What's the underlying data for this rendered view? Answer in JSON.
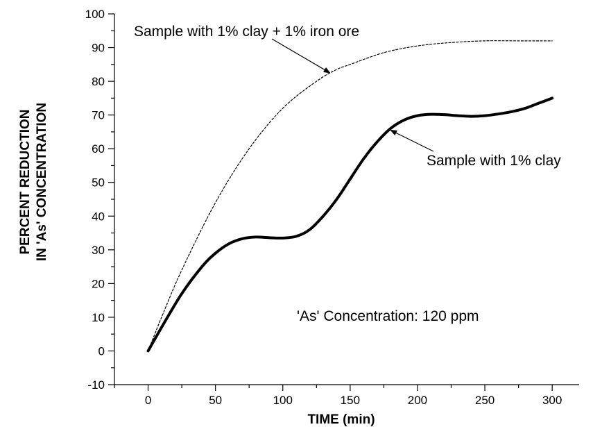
{
  "chart_data": {
    "type": "line",
    "xlabel": "TIME (min)",
    "ylabel_lines": [
      "PERCENT REDUCTION",
      "IN 'As' CONCENTRATION"
    ],
    "xlim": [
      -25,
      320
    ],
    "ylim": [
      -10,
      100
    ],
    "x_ticks": [
      0,
      50,
      100,
      150,
      200,
      250,
      300
    ],
    "y_ticks": [
      -10,
      0,
      10,
      20,
      30,
      40,
      50,
      60,
      70,
      80,
      90,
      100
    ],
    "grid": false,
    "series": [
      {
        "name": "Sample with 1% clay + 1% iron ore",
        "style": "dashed",
        "color": "#000000",
        "x": [
          0,
          10,
          25,
          50,
          75,
          100,
          125,
          140,
          150,
          175,
          200,
          225,
          250,
          275,
          300
        ],
        "y": [
          0,
          10,
          24,
          44,
          60,
          72,
          80,
          83.5,
          85,
          88.5,
          90.5,
          91.5,
          92,
          92,
          92
        ]
      },
      {
        "name": "Sample with 1% clay",
        "style": "solid-thick",
        "color": "#000000",
        "x": [
          0,
          10,
          25,
          40,
          50,
          60,
          70,
          80,
          90,
          100,
          110,
          120,
          130,
          140,
          150,
          160,
          170,
          180,
          190,
          200,
          210,
          220,
          230,
          240,
          250,
          260,
          270,
          280,
          290,
          300
        ],
        "y": [
          0,
          7,
          17,
          25,
          29,
          31.8,
          33.3,
          33.8,
          33.6,
          33.5,
          34,
          36,
          40,
          45,
          51,
          57,
          62,
          66,
          68.5,
          69.8,
          70.2,
          70.1,
          69.8,
          69.6,
          69.8,
          70.3,
          71,
          72,
          73.5,
          75
        ]
      }
    ],
    "annotations": [
      {
        "text": "Sample with 1% clay + 1% iron ore",
        "arrow_to": [
          135,
          82.5
        ]
      },
      {
        "text": "Sample with 1% clay",
        "arrow_to": [
          180,
          65.5
        ]
      },
      {
        "text": "'As' Concentration: 120 ppm"
      }
    ]
  }
}
